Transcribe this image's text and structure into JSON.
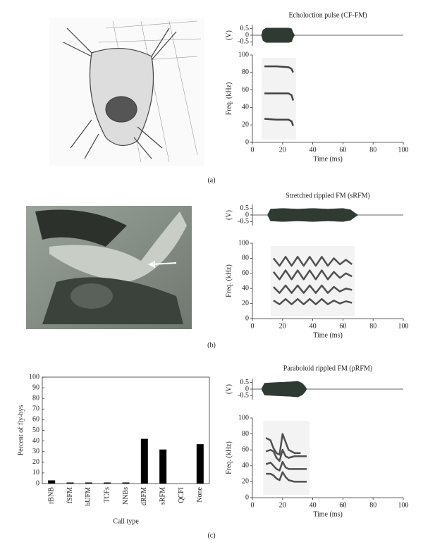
{
  "panels": [
    "(a)",
    "(b)",
    "(c)"
  ],
  "chart_data": [
    {
      "type": "call",
      "title": "Echoloction pulse (CF-FM)",
      "x_label": "Time (ms)",
      "xlim": [
        0,
        100
      ],
      "xticks": [
        0,
        20,
        40,
        60,
        80,
        100
      ],
      "osc": {
        "y_label": "(V)",
        "ylim": [
          -0.8,
          0.8
        ],
        "yticks": [
          0.5,
          0,
          -0.5
        ],
        "color": "#2f3a33",
        "x": [
          6,
          7,
          9,
          24,
          26,
          27,
          28
        ],
        "values": [
          0,
          0.4,
          0.55,
          0.55,
          0.5,
          0.2,
          0
        ]
      },
      "spec": {
        "y_label": "Freq. (kHz)",
        "ylim": [
          0,
          100
        ],
        "yticks": [
          0,
          20,
          40,
          60,
          80,
          100
        ],
        "color": "#222",
        "x": [
          8,
          16,
          24,
          26,
          27
        ],
        "series": [
          {
            "values": [
              87,
              87,
              86,
              84,
              80
            ]
          },
          {
            "values": [
              56,
              56,
              56,
              54,
              48
            ]
          },
          {
            "values": [
              27,
              26,
              26,
              24,
              19
            ]
          }
        ]
      }
    },
    {
      "type": "call",
      "title": "Stretched rippled FM (sRFM)",
      "x_label": "Time (ms)",
      "xlim": [
        0,
        100
      ],
      "xticks": [
        0,
        20,
        40,
        60,
        80,
        100
      ],
      "osc": {
        "y_label": "(V)",
        "ylim": [
          -0.8,
          0.8
        ],
        "yticks": [
          0.5,
          0,
          -0.5
        ],
        "color": "#2f3a33",
        "x": [
          10,
          12,
          20,
          30,
          40,
          50,
          60,
          65,
          68,
          70
        ],
        "values": [
          0,
          0.45,
          0.5,
          0.45,
          0.5,
          0.45,
          0.5,
          0.4,
          0.15,
          0
        ]
      },
      "spec": {
        "y_label": "Freq. (kHz)",
        "ylim": [
          0,
          100
        ],
        "yticks": [
          0,
          20,
          40,
          60,
          80,
          100
        ],
        "color": "#333",
        "x": [
          14,
          18,
          22,
          26,
          30,
          34,
          38,
          42,
          46,
          50,
          54,
          58,
          62,
          66
        ],
        "series": [
          {
            "values": [
              80,
              70,
              82,
              70,
              82,
              70,
              82,
              70,
              82,
              70,
              80,
              72,
              78,
              72
            ]
          },
          {
            "values": [
              62,
              52,
              64,
              52,
              64,
              52,
              64,
              52,
              64,
              52,
              62,
              54,
              60,
              56
            ]
          },
          {
            "values": [
              42,
              34,
              44,
              34,
              44,
              34,
              44,
              34,
              44,
              34,
              42,
              36,
              40,
              38
            ]
          },
          {
            "values": [
              24,
              19,
              26,
              19,
              26,
              19,
              26,
              19,
              26,
              19,
              24,
              20,
              23,
              21
            ]
          }
        ]
      }
    },
    {
      "type": "bar",
      "y_label": "Percent of fly-bys",
      "x_label": "Call type",
      "color": "#000",
      "categories": [
        "rBNB",
        "fSFM",
        "bUFM",
        "TCFs",
        "NNBs",
        "dRFM",
        "sRFM",
        "QCFI",
        "None"
      ],
      "values": [
        3,
        1,
        1,
        1,
        1,
        42,
        32,
        0,
        37
      ],
      "ylim": [
        0,
        100
      ],
      "yticks": [
        0,
        10,
        20,
        30,
        40,
        50,
        60,
        70,
        80,
        90,
        100
      ]
    },
    {
      "type": "call",
      "title": "Paraboloid rippled FM (pRFM)",
      "x_label": "Time (ms)",
      "xlim": [
        0,
        100
      ],
      "xticks": [
        0,
        20,
        40,
        60,
        80,
        100
      ],
      "osc": {
        "y_label": "(V)",
        "ylim": [
          -0.8,
          0.8
        ],
        "yticks": [
          0.5,
          0,
          -0.5
        ],
        "color": "#2f3a33",
        "x": [
          6,
          8,
          15,
          25,
          30,
          33,
          35,
          36
        ],
        "values": [
          0,
          0.45,
          0.5,
          0.55,
          0.6,
          0.45,
          0.2,
          0
        ]
      },
      "spec": {
        "y_label": "Freq. (kHz)",
        "ylim": [
          0,
          100
        ],
        "yticks": [
          0,
          20,
          40,
          60,
          80,
          100
        ],
        "color": "#333",
        "x": [
          9,
          12,
          14,
          16,
          18,
          20,
          22,
          24,
          28,
          32,
          36
        ],
        "series": [
          {
            "values": [
              75,
              72,
              62,
              56,
              54,
              80,
              70,
              60,
              56,
              56,
              null
            ]
          },
          {
            "values": [
              58,
              60,
              58,
              50,
              46,
              60,
              52,
              50,
              52,
              52,
              52
            ]
          },
          {
            "values": [
              42,
              44,
              40,
              36,
              34,
              45,
              38,
              36,
              36,
              36,
              36
            ]
          },
          {
            "values": [
              30,
              30,
              28,
              24,
              22,
              32,
              26,
              22,
              20,
              20,
              20
            ]
          }
        ]
      }
    }
  ]
}
